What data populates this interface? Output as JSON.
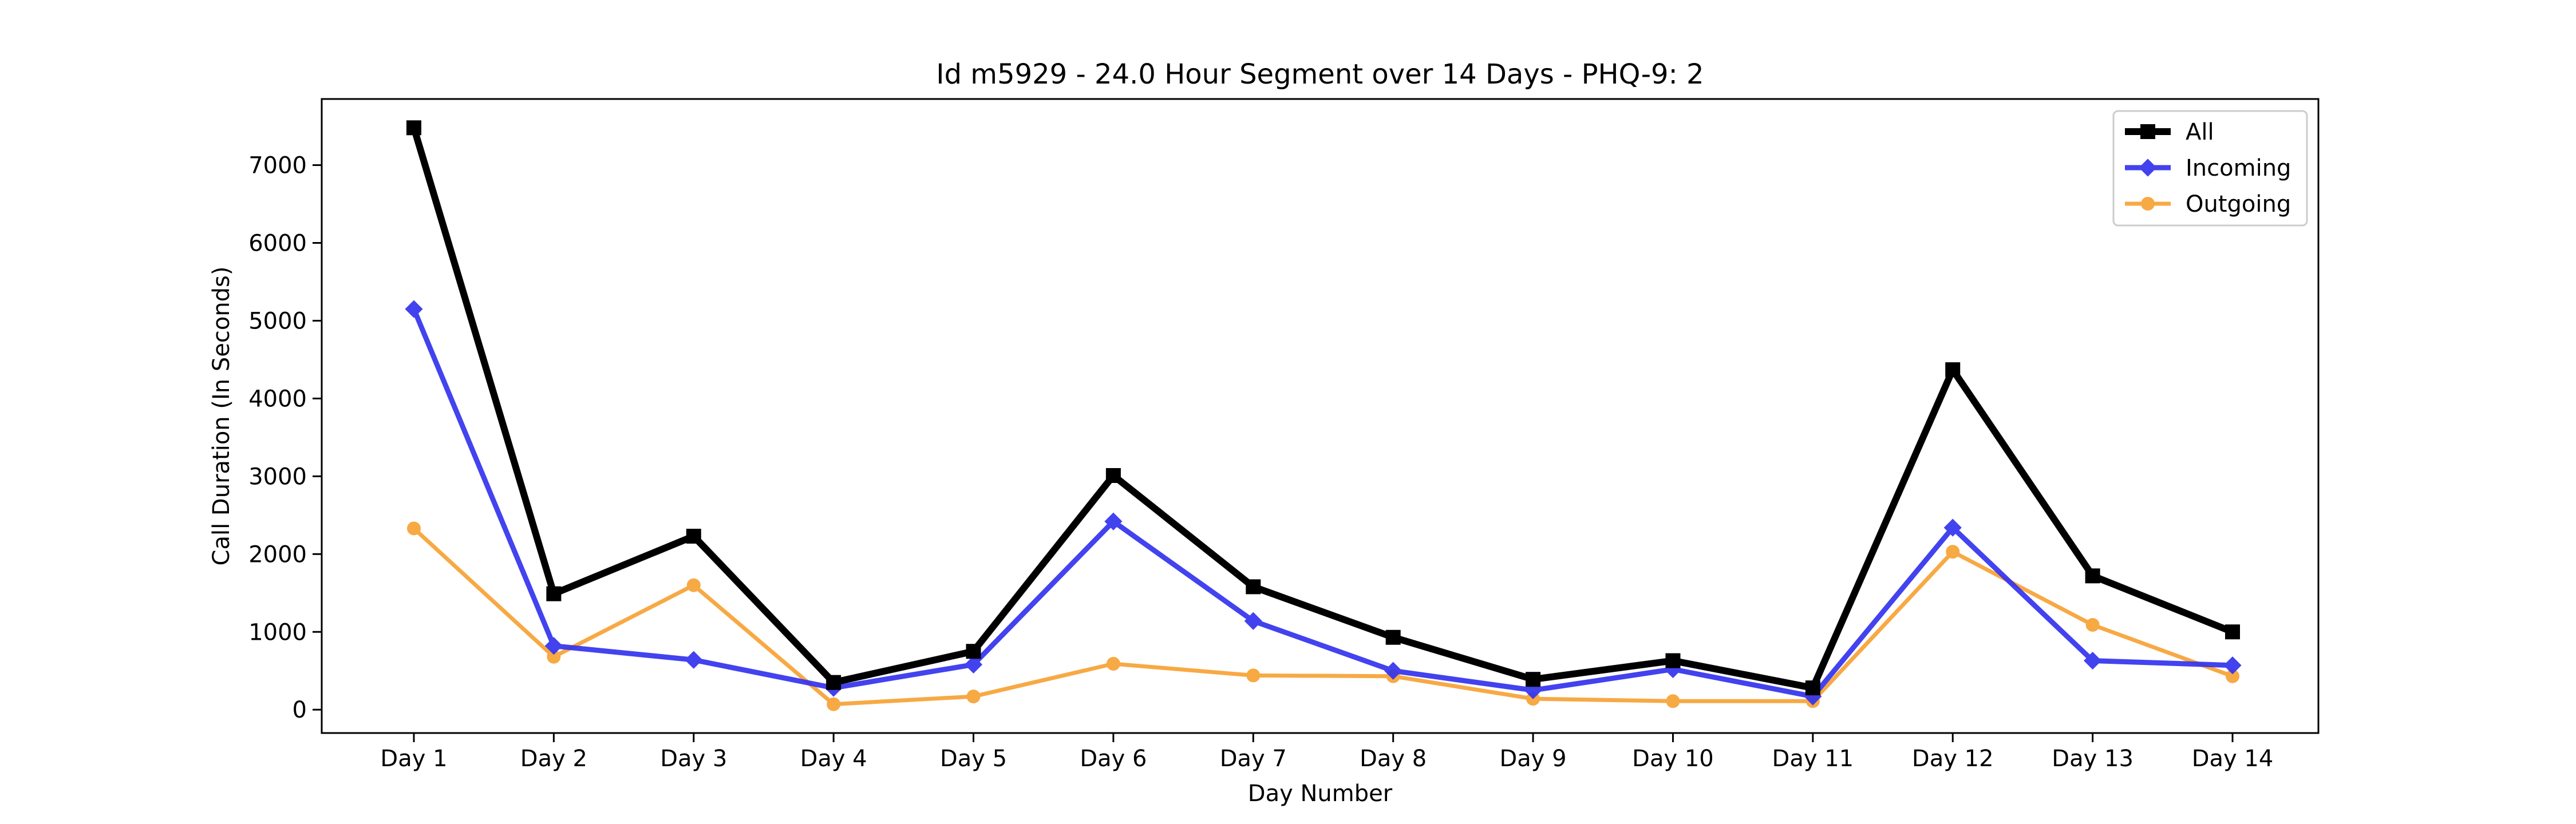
{
  "chart_data": {
    "type": "line",
    "title": "Id m5929 - 24.0 Hour Segment over 14 Days - PHQ-9: 2",
    "xlabel": "Day Number",
    "ylabel": "Call Duration (In Seconds)",
    "categories": [
      "Day 1",
      "Day 2",
      "Day 3",
      "Day 4",
      "Day 5",
      "Day 6",
      "Day 7",
      "Day 8",
      "Day 9",
      "Day 10",
      "Day 11",
      "Day 12",
      "Day 13",
      "Day 14"
    ],
    "ylim": [
      -300,
      7850
    ],
    "yticks": [
      0,
      1000,
      2000,
      3000,
      4000,
      5000,
      6000,
      7000
    ],
    "grid": false,
    "legend_position": "top-right",
    "series": [
      {
        "name": "All",
        "color": "#000000",
        "marker": "square",
        "values": [
          7480,
          1490,
          2230,
          350,
          750,
          3010,
          1580,
          930,
          390,
          630,
          280,
          4370,
          1720,
          1000
        ]
      },
      {
        "name": "Incoming",
        "color": "#3333ee",
        "marker": "diamond",
        "values": [
          5150,
          820,
          640,
          280,
          580,
          2420,
          1140,
          500,
          250,
          520,
          170,
          2340,
          630,
          570
        ]
      },
      {
        "name": "Outgoing",
        "color": "#f7a030",
        "marker": "circle",
        "values": [
          2330,
          680,
          1600,
          70,
          170,
          590,
          440,
          430,
          140,
          110,
          110,
          2030,
          1090,
          430
        ]
      }
    ]
  }
}
